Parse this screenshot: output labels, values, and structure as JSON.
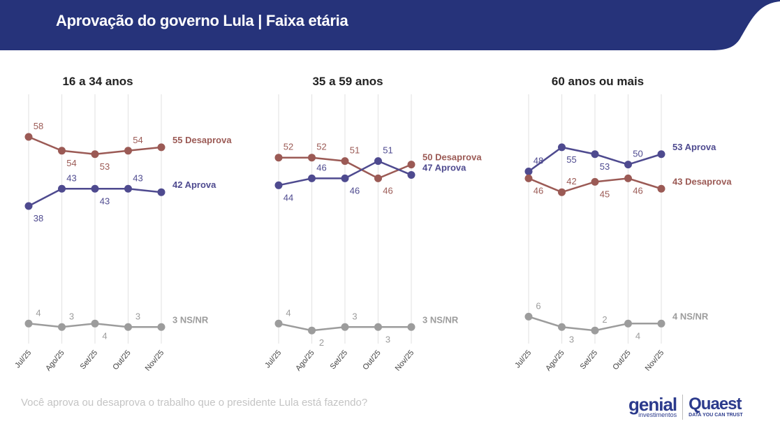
{
  "header": {
    "title": "Aprovação do governo Lula | Faixa etária"
  },
  "footer": {
    "question": "Você aprova ou desaprova o trabalho que o presidente Lula está fazendo?",
    "logo_genial": "genial",
    "logo_genial_sub": "investimentos",
    "logo_quaest": "Quaest",
    "logo_quaest_sub": "DATA YOU CAN TRUST"
  },
  "colors": {
    "header": "#26337a",
    "desaprova": "#9b5a55",
    "aprova": "#4e4a8f",
    "nsnr": "#9c9c9c"
  },
  "chart_data": [
    {
      "type": "line",
      "title": "16 a 34 anos",
      "categories": [
        "Jul/25",
        "Ago/25",
        "Set/25",
        "Out/25",
        "Nov/25"
      ],
      "ylim": [
        0,
        60
      ],
      "grid": "vertical",
      "series": [
        {
          "name": "Desaprova",
          "color_key": "desaprova",
          "values": [
            58,
            54,
            53,
            54,
            55
          ],
          "end_label": "55 Desaprova",
          "label_pos": [
            "above",
            "below",
            "below",
            "above"
          ]
        },
        {
          "name": "Aprova",
          "color_key": "aprova",
          "values": [
            38,
            43,
            43,
            43,
            42
          ],
          "end_label": "42 Aprova",
          "label_pos": [
            "below",
            "above",
            "below",
            "above"
          ]
        },
        {
          "name": "NS/NR",
          "color_key": "nsnr",
          "values": [
            4,
            3,
            4,
            3,
            3
          ],
          "end_label": "3 NS/NR",
          "label_pos": [
            "above",
            "above",
            "below",
            "above"
          ]
        }
      ]
    },
    {
      "type": "line",
      "title": "35 a 59 anos",
      "categories": [
        "Jul/25",
        "Ago/25",
        "Set/25",
        "Out/25",
        "Nov/25"
      ],
      "ylim": [
        0,
        60
      ],
      "grid": "vertical",
      "series": [
        {
          "name": "Desaprova",
          "color_key": "desaprova",
          "values": [
            52,
            52,
            51,
            46,
            50
          ],
          "end_label": "50 Desaprova",
          "label_pos": [
            "above",
            "above",
            "above",
            "below"
          ]
        },
        {
          "name": "Aprova",
          "color_key": "aprova",
          "values": [
            44,
            46,
            46,
            51,
            47
          ],
          "end_label": "47 Aprova",
          "label_pos": [
            "below",
            "above",
            "below",
            "above"
          ]
        },
        {
          "name": "NS/NR",
          "color_key": "nsnr",
          "values": [
            4,
            2,
            3,
            3,
            3
          ],
          "end_label": "3 NS/NR",
          "label_pos": [
            "above",
            "below",
            "above",
            "below"
          ]
        }
      ]
    },
    {
      "type": "line",
      "title": "60 anos ou mais",
      "categories": [
        "Jul/25",
        "Ago/25",
        "Set/25",
        "Out/25",
        "Nov/25"
      ],
      "ylim": [
        0,
        60
      ],
      "grid": "vertical",
      "series": [
        {
          "name": "Aprova",
          "color_key": "aprova",
          "values": [
            48,
            55,
            53,
            50,
            53
          ],
          "end_label": "53 Aprova",
          "label_pos": [
            "above",
            "below",
            "below",
            "above"
          ]
        },
        {
          "name": "Desaprova",
          "color_key": "desaprova",
          "values": [
            46,
            42,
            45,
            46,
            43
          ],
          "end_label": "43 Desaprova",
          "label_pos": [
            "below",
            "above",
            "below",
            "below"
          ]
        },
        {
          "name": "NS/NR",
          "color_key": "nsnr",
          "values": [
            6,
            3,
            2,
            4,
            4
          ],
          "end_label": "4 NS/NR",
          "label_pos": [
            "above",
            "below",
            "above",
            "below"
          ]
        }
      ]
    }
  ]
}
